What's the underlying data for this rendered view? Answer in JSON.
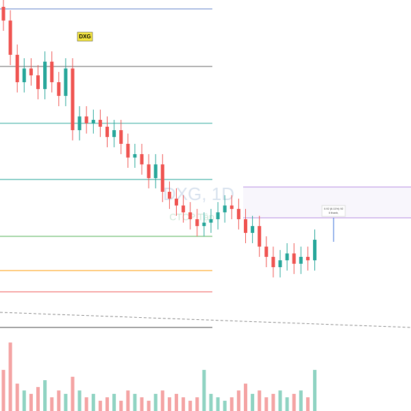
{
  "chart_data": {
    "type": "candlestick",
    "badge": "DXG",
    "watermark": "DXG, 1D",
    "watermark_sub": "CTCP Tập",
    "measure_label": "0.92 (6.11%) 92",
    "measure_sub": "0 thanh,",
    "ylim": [
      13,
      22
    ],
    "open": [
      21.8,
      21.4,
      20.4,
      19.6,
      20,
      19.8,
      19.4,
      20.2,
      19.6,
      19.2,
      20,
      18.2,
      18.6,
      18.4,
      18.5,
      18.3,
      18,
      18.2,
      17.8,
      17.4,
      17.5,
      17.2,
      16.8,
      17.2,
      16.4,
      16.2,
      16,
      15.8,
      15.6,
      15.4,
      15.5,
      15.6,
      15.8,
      16,
      15.9,
      15.6,
      15.2,
      15.4,
      14.8,
      14.5,
      14.2,
      14.4,
      14.6,
      14.3,
      14.5,
      14.4
    ],
    "high": [
      22.1,
      21.7,
      20.7,
      20.3,
      20.3,
      20.1,
      20.5,
      20.5,
      19.9,
      20.3,
      20.3,
      18.9,
      18.9,
      18.8,
      18.8,
      18.6,
      18.5,
      18.5,
      18.1,
      17.8,
      17.8,
      17.5,
      17.5,
      17.5,
      16.7,
      16.5,
      16.3,
      16.1,
      15.9,
      15.8,
      15.9,
      16.1,
      16.3,
      16.3,
      16.2,
      15.9,
      15.7,
      15.7,
      15.1,
      14.8,
      14.7,
      14.9,
      14.9,
      14.8,
      14.8,
      15.3
    ],
    "low": [
      21.1,
      20.1,
      19.3,
      19.3,
      19.5,
      19.1,
      19.1,
      19.3,
      18.9,
      18.9,
      17.9,
      17.9,
      18.1,
      18.1,
      18,
      17.7,
      17.7,
      17.5,
      17.1,
      17.1,
      16.9,
      16.5,
      16.5,
      16.1,
      15.9,
      15.7,
      15.5,
      15.3,
      15.1,
      15.1,
      15.2,
      15.3,
      15.5,
      15.6,
      15.3,
      14.9,
      14.9,
      14.5,
      14.2,
      13.9,
      13.9,
      14.1,
      14,
      14,
      14.1,
      14.1
    ],
    "close": [
      21.4,
      20.4,
      19.6,
      20,
      19.8,
      19.4,
      20.2,
      19.6,
      19.2,
      20,
      18.2,
      18.6,
      18.4,
      18.5,
      18.3,
      18,
      18.2,
      17.8,
      17.4,
      17.5,
      17.2,
      16.8,
      17.2,
      16.4,
      16.2,
      16,
      15.8,
      15.6,
      15.4,
      15.5,
      15.6,
      15.8,
      16,
      15.9,
      15.6,
      15.2,
      15.4,
      14.8,
      14.5,
      14.2,
      14.4,
      14.6,
      14.3,
      14.5,
      14.4,
      15
    ],
    "volume": [
      60,
      100,
      40,
      30,
      25,
      35,
      45,
      20,
      30,
      25,
      50,
      30,
      20,
      25,
      15,
      20,
      25,
      15,
      30,
      25,
      20,
      15,
      25,
      30,
      20,
      25,
      20,
      15,
      20,
      60,
      25,
      20,
      15,
      20,
      30,
      40,
      25,
      30,
      20,
      25,
      30,
      20,
      25,
      30,
      20,
      60
    ],
    "volume_ylim": [
      0,
      130
    ],
    "up_color": "#26a69a",
    "down_color": "#ef5350",
    "volume_up_color": "#8fd3c2",
    "volume_down_color": "#f4a3a3",
    "levels": [
      {
        "value": 21.74,
        "color": "#5b7fc7"
      },
      {
        "value": 20.06,
        "color": "#666666"
      },
      {
        "value": 18.4,
        "color": "#26a69a"
      },
      {
        "value": 16.76,
        "color": "#26a69a"
      },
      {
        "value": 15.1,
        "color": "#4caf50"
      },
      {
        "value": 14.1,
        "color": "#ff9800"
      },
      {
        "value": 13.48,
        "color": "#ef5350"
      }
    ]
  }
}
